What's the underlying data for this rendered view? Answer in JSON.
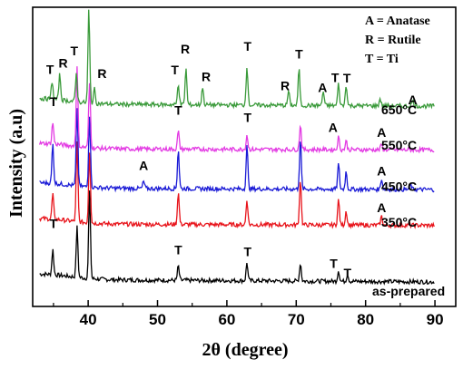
{
  "chart_data": {
    "type": "line",
    "xlabel": "2θ (degree)",
    "ylabel": "Intensity (a.u)",
    "xlim": [
      32,
      93
    ],
    "xticks": [
      40,
      50,
      60,
      70,
      80,
      90
    ],
    "grid": false,
    "legend": {
      "placement": "top-right",
      "entries": [
        "A = Anatase",
        "R = Rutile",
        "T = Ti"
      ]
    },
    "colors": {
      "as-prepared": "#000000",
      "350°C": "#e8141b",
      "450°C": "#1a1ad6",
      "550°C": "#e33be3",
      "650°C": "#3a9a3a"
    },
    "series": [
      {
        "name": "as-prepared",
        "baseline": 0.0,
        "noise": 0.6,
        "slope": 0.1,
        "peaks": [
          [
            34.9,
            7
          ],
          [
            38.4,
            14
          ],
          [
            40.2,
            24
          ],
          [
            53.0,
            4
          ],
          [
            62.9,
            5
          ],
          [
            70.6,
            5
          ],
          [
            76.1,
            3
          ],
          [
            77.4,
            2
          ]
        ],
        "labels": [
          {
            "text": "T",
            "x": 35.0,
            "dy": 11
          },
          {
            "text": "T",
            "x": 53.0,
            "dy": 7
          },
          {
            "text": "T",
            "x": 63.0,
            "dy": 7
          },
          {
            "text": "T",
            "x": 75.4,
            "dy": 6
          },
          {
            "text": "T",
            "x": 77.4,
            "dy": 4
          }
        ]
      },
      {
        "name": "350°C",
        "baseline": 15.5,
        "noise": 0.6,
        "slope": 0.06,
        "peaks": [
          [
            34.9,
            7
          ],
          [
            38.4,
            22
          ],
          [
            40.2,
            20
          ],
          [
            53.0,
            9
          ],
          [
            62.9,
            7
          ],
          [
            70.6,
            13
          ],
          [
            76.1,
            7
          ],
          [
            77.2,
            4
          ],
          [
            82.3,
            2.5
          ]
        ],
        "labels": [
          {
            "text": "A",
            "x": 82.3,
            "dy": 5
          }
        ]
      },
      {
        "name": "450°C",
        "baseline": 25.5,
        "noise": 0.6,
        "slope": 0.06,
        "peaks": [
          [
            34.9,
            11
          ],
          [
            38.4,
            22
          ],
          [
            40.2,
            20
          ],
          [
            48.0,
            2
          ],
          [
            53.0,
            11
          ],
          [
            62.9,
            12
          ],
          [
            70.6,
            14
          ],
          [
            76.1,
            7
          ],
          [
            77.2,
            5
          ],
          [
            82.3,
            3
          ],
          [
            86.5,
            1.5
          ]
        ],
        "labels": [
          {
            "text": "A",
            "x": 48.0,
            "dy": 5
          },
          {
            "text": "A",
            "x": 82.3,
            "dy": 5
          }
        ]
      },
      {
        "name": "550°C",
        "baseline": 36.5,
        "noise": 0.6,
        "slope": 0.05,
        "peaks": [
          [
            34.9,
            6
          ],
          [
            38.4,
            22
          ],
          [
            40.2,
            18
          ],
          [
            53.0,
            5
          ],
          [
            62.9,
            4
          ],
          [
            70.6,
            7
          ],
          [
            76.1,
            3.5
          ],
          [
            77.2,
            2.5
          ],
          [
            82.3,
            1.5
          ]
        ],
        "labels": [
          {
            "text": "T",
            "x": 35.0,
            "dy": 9
          },
          {
            "text": "T",
            "x": 53.0,
            "dy": 8
          },
          {
            "text": "T",
            "x": 63.0,
            "dy": 7
          },
          {
            "text": "A",
            "x": 75.3,
            "dy": 5
          },
          {
            "text": "A",
            "x": 82.3,
            "dy": 5
          }
        ]
      },
      {
        "name": "650°C",
        "baseline": 49.0,
        "noise": 0.6,
        "slope": 0.09,
        "peaks": [
          [
            34.8,
            5
          ],
          [
            35.9,
            7
          ],
          [
            38.3,
            8
          ],
          [
            40.1,
            26
          ],
          [
            40.9,
            4
          ],
          [
            53.0,
            6
          ],
          [
            54.1,
            10
          ],
          [
            56.5,
            5
          ],
          [
            62.9,
            11
          ],
          [
            68.9,
            4
          ],
          [
            70.4,
            10
          ],
          [
            73.9,
            4
          ],
          [
            76.1,
            6
          ],
          [
            77.2,
            6
          ],
          [
            82.1,
            2
          ],
          [
            86.8,
            1.5
          ]
        ],
        "labels": [
          {
            "text": "T",
            "x": 34.5,
            "dy": 6
          },
          {
            "text": "R",
            "x": 36.4,
            "dy": 7
          },
          {
            "text": "T",
            "x": 38.0,
            "dy": 10
          },
          {
            "text": "T",
            "x": 40.2,
            "dy": 28
          },
          {
            "text": "R",
            "x": 42.0,
            "dy": 6
          },
          {
            "text": "T",
            "x": 52.5,
            "dy": 7
          },
          {
            "text": "R",
            "x": 54.0,
            "dy": 11
          },
          {
            "text": "R",
            "x": 57.0,
            "dy": 6
          },
          {
            "text": "T",
            "x": 63.0,
            "dy": 12
          },
          {
            "text": "R",
            "x": 68.4,
            "dy": 5
          },
          {
            "text": "T",
            "x": 70.4,
            "dy": 11
          },
          {
            "text": "A",
            "x": 73.8,
            "dy": 5
          },
          {
            "text": "T",
            "x": 75.6,
            "dy": 7
          },
          {
            "text": "T",
            "x": 77.3,
            "dy": 7
          },
          {
            "text": "A",
            "x": 86.8,
            "dy": 4
          }
        ]
      }
    ]
  }
}
